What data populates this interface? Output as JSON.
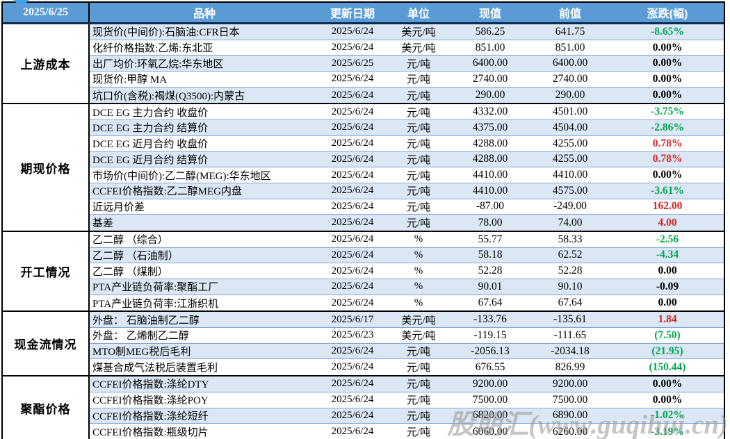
{
  "report": {
    "date": "2025/6/25",
    "watermark": "股期汇(www.guqihui.cn)"
  },
  "columns": {
    "variety": "品种",
    "update_date": "更新日期",
    "unit": "单位",
    "current": "现值",
    "previous": "前值",
    "change": "涨跌(幅)"
  },
  "colors": {
    "header_bg": "#5b9bd5",
    "stripe_bg": "#dbe7f4",
    "row_separator": "#7fa8d9",
    "positive_red": "#d42626",
    "negative_green": "#00a651",
    "neutral_black": "#000000"
  },
  "groups": [
    {
      "label": "上游成本",
      "rows": [
        {
          "name": "现货价(中间价):石脑油:CFR日本",
          "date": "2025/6/24",
          "unit": "美元/吨",
          "current": "586.25",
          "previous": "641.75",
          "change": "-8.65%",
          "change_color": "green"
        },
        {
          "name": "化纤价格指数:乙烯:东北亚",
          "date": "2025/6/24",
          "unit": "美元/吨",
          "current": "851.00",
          "previous": "851.00",
          "change": "0.00%",
          "change_color": "black"
        },
        {
          "name": "出厂均价:环氧乙烷:华东地区",
          "date": "2025/6/25",
          "unit": "元/吨",
          "current": "6400.00",
          "previous": "6400.00",
          "change": "0.00%",
          "change_color": "black"
        },
        {
          "name": "现货价:甲醇 MA",
          "date": "2025/6/24",
          "unit": "元/吨",
          "current": "2740.00",
          "previous": "2740.00",
          "change": "0.00%",
          "change_color": "black"
        },
        {
          "name": "坑口价(含税):褐煤(Q3500):内蒙古",
          "date": "2025/6/24",
          "unit": "元/吨",
          "current": "290.00",
          "previous": "290.00",
          "change": "0.00%",
          "change_color": "black"
        }
      ]
    },
    {
      "label": "期现价格",
      "rows": [
        {
          "name": "DCE EG 主力合约 收盘价",
          "date": "2025/6/24",
          "unit": "元/吨",
          "current": "4332.00",
          "previous": "4501.00",
          "change": "-3.75%",
          "change_color": "green"
        },
        {
          "name": "DCE EG 主力合约 结算价",
          "date": "2025/6/24",
          "unit": "元/吨",
          "current": "4375.00",
          "previous": "4504.00",
          "change": "-2.86%",
          "change_color": "green"
        },
        {
          "name": "DCE EG 近月合约 收盘价",
          "date": "2025/6/24",
          "unit": "元/吨",
          "current": "4288.00",
          "previous": "4255.00",
          "change": "0.78%",
          "change_color": "red"
        },
        {
          "name": "DCE EG 近月合约 结算价",
          "date": "2025/6/24",
          "unit": "元/吨",
          "current": "4288.00",
          "previous": "4255.00",
          "change": "0.78%",
          "change_color": "red"
        },
        {
          "name": "市场价(中间价):乙二醇(MEG):华东地区",
          "date": "2025/6/24",
          "unit": "元/吨",
          "current": "4410.00",
          "previous": "4410.00",
          "change": "0.00%",
          "change_color": "black"
        },
        {
          "name": "CCFEI价格指数:乙二醇MEG内盘",
          "date": "2025/6/24",
          "unit": "元/吨",
          "current": "4410.00",
          "previous": "4575.00",
          "change": "-3.61%",
          "change_color": "green"
        },
        {
          "name": "近远月价差",
          "date": "2025/6/24",
          "unit": "元/吨",
          "current": "-87.00",
          "previous": "-249.00",
          "change": "162.00",
          "change_color": "red"
        },
        {
          "name": "基差",
          "date": "2025/6/24",
          "unit": "元/吨",
          "current": "78.00",
          "previous": "74.00",
          "change": "4.00",
          "change_color": "red"
        }
      ]
    },
    {
      "label": "开工情况",
      "rows": [
        {
          "name": "乙二醇 （综合）",
          "date": "2025/6/24",
          "unit": "%",
          "current": "55.77",
          "previous": "58.33",
          "change": "-2.56",
          "change_color": "green"
        },
        {
          "name": "乙二醇 （石油制）",
          "date": "2025/6/24",
          "unit": "%",
          "current": "58.18",
          "previous": "62.52",
          "change": "-4.34",
          "change_color": "green"
        },
        {
          "name": "乙二醇 （煤制）",
          "date": "2025/6/24",
          "unit": "%",
          "current": "52.28",
          "previous": "52.28",
          "change": "0.00",
          "change_color": "black"
        },
        {
          "name": "PTA产业链负荷率:聚酯工厂",
          "date": "2025/6/24",
          "unit": "%",
          "current": "90.01",
          "previous": "90.10",
          "change": "-0.09",
          "change_color": "black"
        },
        {
          "name": "PTA产业链负荷率:江浙织机",
          "date": "2025/6/24",
          "unit": "%",
          "current": "67.64",
          "previous": "67.64",
          "change": "0.00",
          "change_color": "black"
        }
      ]
    },
    {
      "label": "现金流情况",
      "rows": [
        {
          "name": "外盘： 石脑油制乙二醇",
          "date": "2025/6/17",
          "unit": "美元/吨",
          "current": "-133.76",
          "previous": "-135.61",
          "change": "1.84",
          "change_color": "red"
        },
        {
          "name": "外盘： 乙烯制乙二醇",
          "date": "2025/6/23",
          "unit": "美元/吨",
          "current": "-119.15",
          "previous": "-111.65",
          "change": "(7.50)",
          "change_color": "green"
        },
        {
          "name": "MTO制MEG税后毛利",
          "date": "2025/6/24",
          "unit": "元/吨",
          "current": "-2056.13",
          "previous": "-2034.18",
          "change": "(21.95)",
          "change_color": "green"
        },
        {
          "name": "煤基合成气法税后装置毛利",
          "date": "2025/6/24",
          "unit": "元/吨",
          "current": "676.55",
          "previous": "826.99",
          "change": "(150.44)",
          "change_color": "green"
        }
      ]
    },
    {
      "label": "聚酯价格",
      "rows": [
        {
          "name": "CCFEI价格指数:涤纶DTY",
          "date": "2025/6/24",
          "unit": "元/吨",
          "current": "9200.00",
          "previous": "9200.00",
          "change": "0.00%",
          "change_color": "black"
        },
        {
          "name": "CCFEI价格指数:涤纶POY",
          "date": "2025/6/24",
          "unit": "元/吨",
          "current": "7500.00",
          "previous": "7500.00",
          "change": "0.00%",
          "change_color": "black"
        },
        {
          "name": "CCFEI价格指数:涤纶短纤",
          "date": "2025/6/24",
          "unit": "元/吨",
          "current": "6820.00",
          "previous": "6890.00",
          "change": "-1.02%",
          "change_color": "green"
        },
        {
          "name": "CCFEI价格指数:瓶级切片",
          "date": "2025/6/24",
          "unit": "元/吨",
          "current": "6060.00",
          "previous": "6260.00",
          "change": "-3.19%",
          "change_color": "green"
        }
      ]
    }
  ]
}
